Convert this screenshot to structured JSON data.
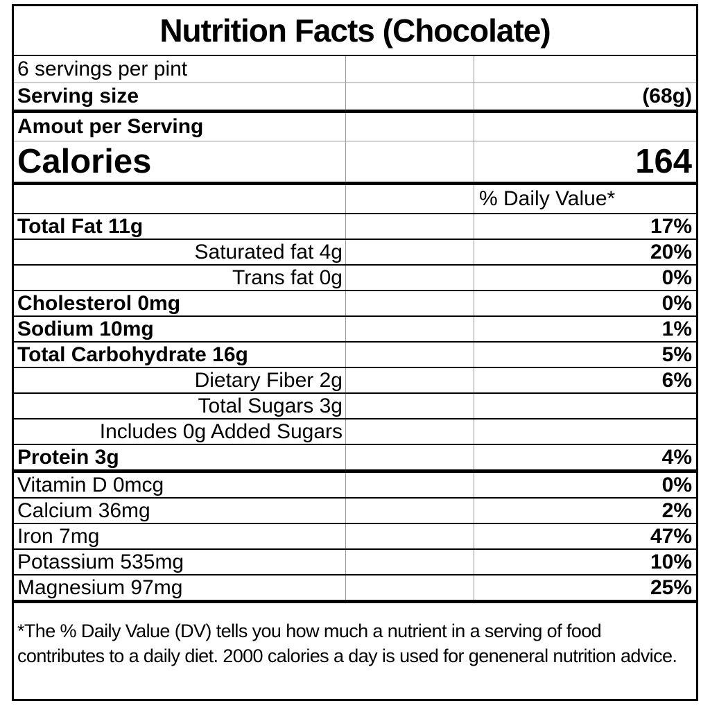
{
  "title": "Nutrition Facts (Chocolate)",
  "servings_per_container": "6 servings per pint",
  "serving_size": {
    "label": "Serving size",
    "value": "(68g)"
  },
  "amount_per_serving_label": "Amout per Serving",
  "calories": {
    "label": "Calories",
    "value": "164"
  },
  "daily_value_header": "% Daily Value*",
  "nutrients": [
    {
      "name": "Total Fat 11g",
      "dv": "17%",
      "bold": true,
      "indent": false
    },
    {
      "name": "Saturated fat 4g",
      "dv": "20%",
      "bold": false,
      "indent": true
    },
    {
      "name": "Trans fat 0g",
      "dv": "0%",
      "bold": false,
      "indent": true
    },
    {
      "name": "Cholesterol 0mg",
      "dv": "0%",
      "bold": true,
      "indent": false
    },
    {
      "name": "Sodium 10mg",
      "dv": "1%",
      "bold": true,
      "indent": false
    },
    {
      "name": "Total Carbohydrate 16g",
      "dv": "5%",
      "bold": true,
      "indent": false
    },
    {
      "name": "Dietary Fiber 2g",
      "dv": "6%",
      "bold": false,
      "indent": true
    },
    {
      "name": "Total Sugars 3g",
      "dv": "",
      "bold": false,
      "indent": true
    },
    {
      "name": "Includes 0g Added Sugars",
      "dv": "",
      "bold": false,
      "indent": true
    },
    {
      "name": "Protein 3g",
      "dv": "4%",
      "bold": true,
      "indent": false,
      "thick_bottom": true
    }
  ],
  "minerals": [
    {
      "name": "Vitamin D 0mcg",
      "dv": "0%"
    },
    {
      "name": "Calcium 36mg",
      "dv": "2%"
    },
    {
      "name": "Iron 7mg",
      "dv": "47%"
    },
    {
      "name": "Potassium 535mg",
      "dv": "10%"
    },
    {
      "name": "Magnesium 97mg",
      "dv": "25%",
      "thick_bottom": true
    }
  ],
  "footnote": "*The % Daily Value (DV) tells you how much a nutrient in a serving of food contributes to a daily diet. 2000 calories a day is used for geneneral nutrition advice.",
  "colors": {
    "border": "#000000",
    "grid_divider": "#999999",
    "background": "#ffffff"
  }
}
